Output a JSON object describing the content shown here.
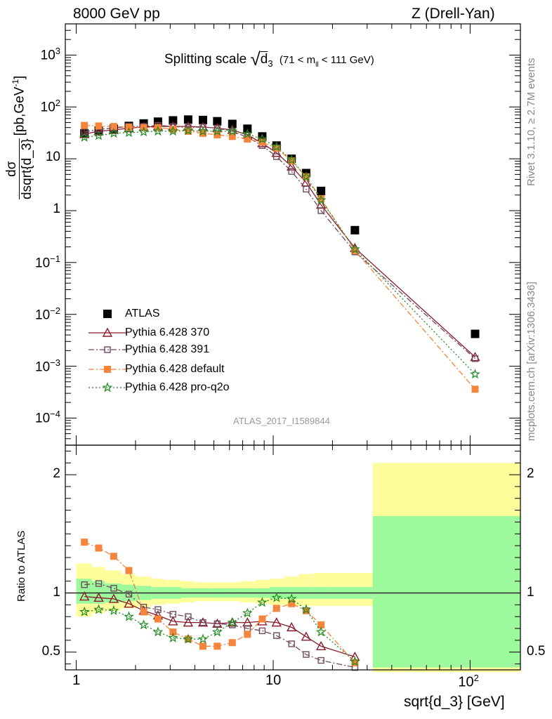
{
  "header": {
    "left": "8000 GeV pp",
    "right": "Z (Drell-Yan)"
  },
  "side_labels": {
    "rivet": "Rivet 3.1.10, ≥ 2.7M events",
    "mcplots": "mcplots.cern.ch [arXiv:1306.3436]"
  },
  "plot_title": {
    "prefix": "Splitting scale",
    "var": "d",
    "sub": "3",
    "range_left": "(71 < m",
    "range_sub": "ll",
    "range_right": " < 111 GeV)"
  },
  "watermark": "ATLAS_2017_I1589844",
  "axes": {
    "ylabel_num": "dσ",
    "ylabel_den": "dsqrt{d_3}",
    "ylabel_unit": "[pb,GeV",
    "ylabel_unit_sup": "-1",
    "ylabel_unit_close": "]",
    "ratio_ylabel": "Ratio to ATLAS",
    "xlabel": "sqrt{d_3} [GeV]",
    "x_ticks": [
      {
        "v": 1,
        "text": "1"
      },
      {
        "v": 10,
        "text": "10"
      },
      {
        "v": 100,
        "base": "10",
        "exp": "2"
      }
    ],
    "main_y_ticks": [
      {
        "v": 0.0001,
        "base": "10",
        "exp": "−4"
      },
      {
        "v": 0.001,
        "base": "10",
        "exp": "−3"
      },
      {
        "v": 0.01,
        "base": "10",
        "exp": "−2"
      },
      {
        "v": 0.1,
        "base": "10",
        "exp": "−1"
      },
      {
        "v": 1,
        "base": "1",
        "exp": ""
      },
      {
        "v": 10,
        "base": "10",
        "exp": ""
      },
      {
        "v": 100,
        "base": "10",
        "exp": "2"
      },
      {
        "v": 1000,
        "base": "10",
        "exp": "3"
      }
    ],
    "ratio_y_ticks": [
      {
        "v": 0.5,
        "text": "0.5"
      },
      {
        "v": 1,
        "text": "1"
      },
      {
        "v": 2,
        "text": "2"
      }
    ]
  },
  "legend": [
    {
      "label": "ATLAS"
    },
    {
      "label": "Pythia 6.428 370"
    },
    {
      "label": "Pythia 6.428 391"
    },
    {
      "label": "Pythia 6.428 default"
    },
    {
      "label": "Pythia 6.428 pro-q2o"
    }
  ],
  "chart_data": {
    "type": "scatter",
    "x_scale": "log",
    "main_y_scale": "log",
    "xlim": [
      0.88,
      180
    ],
    "main_ylim": [
      3e-05,
      4000
    ],
    "ratio_ylim": [
      0.35,
      2.25
    ],
    "x": [
      1.1,
      1.3,
      1.55,
      1.85,
      2.2,
      2.6,
      3.1,
      3.7,
      4.4,
      5.2,
      6.2,
      7.4,
      8.8,
      10.4,
      12.4,
      14.7,
      17.5,
      26,
      106
    ],
    "series": [
      {
        "name": "ATLAS",
        "color": "#000000",
        "marker": "square-filled",
        "line": "none",
        "values": [
          31,
          35,
          38,
          43,
          48,
          52,
          55,
          57,
          56,
          53,
          47,
          38,
          27,
          18,
          10,
          5.3,
          2.4,
          0.42,
          0.0042
        ]
      },
      {
        "name": "Pythia 6.428 370",
        "color": "#8b1a2b",
        "marker": "triangle-open",
        "line": "solid",
        "values": [
          30,
          34,
          36,
          39,
          41,
          42,
          42,
          42,
          41,
          39,
          36,
          29,
          20,
          13,
          7.1,
          3.5,
          1.3,
          0.19,
          0.0015
        ]
      },
      {
        "name": "Pythia 6.428 391",
        "color": "#6f4a5f",
        "marker": "square-open",
        "line": "dashdot",
        "values": [
          33,
          37,
          39,
          42,
          42,
          44,
          42,
          40,
          41,
          39,
          34,
          26,
          18,
          11,
          5.7,
          2.6,
          1.0,
          0.16,
          0.0014
        ]
      },
      {
        "name": "Pythia 6.428 default",
        "color": "#f5843c",
        "marker": "square-filled",
        "line": "dashdot",
        "values": [
          44,
          43,
          42,
          41,
          40,
          40,
          37,
          34,
          31,
          29,
          27,
          24,
          21,
          16,
          9.1,
          4.5,
          1.7,
          0.17,
          0.00036
        ]
      },
      {
        "name": "Pythia 6.428 pro-q2o",
        "color": "#1e8a1e",
        "marker": "star",
        "line": "dotted",
        "values": [
          26,
          28,
          31,
          32,
          33,
          34,
          34,
          35,
          34,
          34,
          34,
          30,
          24,
          17,
          9.5,
          4.5,
          1.6,
          0.18,
          0.0007
        ]
      }
    ],
    "ratio_series": [
      {
        "name": "Pythia 6.428 370",
        "values": [
          0.97,
          0.96,
          0.95,
          0.91,
          0.85,
          0.81,
          0.76,
          0.75,
          0.75,
          0.74,
          0.75,
          0.75,
          0.76,
          0.75,
          0.71,
          0.63,
          0.55,
          0.46
        ]
      },
      {
        "name": "Pythia 6.428 391",
        "values": [
          1.07,
          1.08,
          1.04,
          0.99,
          0.88,
          0.86,
          0.82,
          0.8,
          0.75,
          0.74,
          0.73,
          0.7,
          0.68,
          0.64,
          0.57,
          0.48,
          0.43,
          0.37
        ]
      },
      {
        "name": "Pythia 6.428 default",
        "values": [
          1.43,
          1.38,
          1.31,
          1.19,
          0.84,
          0.78,
          0.67,
          0.61,
          0.55,
          0.55,
          0.58,
          0.65,
          0.78,
          0.87,
          0.91,
          0.85,
          0.73,
          0.41
        ]
      },
      {
        "name": "Pythia 6.428 pro-q2o",
        "values": [
          0.84,
          0.86,
          0.85,
          0.8,
          0.73,
          0.67,
          0.62,
          0.61,
          0.61,
          0.67,
          0.75,
          0.83,
          0.92,
          0.96,
          0.95,
          0.86,
          0.67,
          0.42
        ]
      }
    ],
    "uncertainty_bands": {
      "x_edges": [
        1.0,
        1.2,
        1.4,
        1.7,
        2.0,
        2.4,
        2.8,
        3.4,
        4.0,
        4.8,
        5.7,
        6.8,
        8.1,
        9.6,
        11.4,
        13.5,
        16.0,
        19.0,
        32,
        180
      ],
      "inner_lo": [
        0.91,
        0.91,
        0.92,
        0.93,
        0.94,
        0.95,
        0.95,
        0.96,
        0.96,
        0.96,
        0.96,
        0.96,
        0.96,
        0.95,
        0.95,
        0.95,
        0.95,
        0.95,
        0.37
      ],
      "inner_hi": [
        1.12,
        1.1,
        1.08,
        1.07,
        1.06,
        1.05,
        1.05,
        1.04,
        1.04,
        1.04,
        1.04,
        1.04,
        1.04,
        1.05,
        1.05,
        1.05,
        1.05,
        1.05,
        1.65
      ],
      "outer_lo": [
        0.8,
        0.83,
        0.85,
        0.87,
        0.88,
        0.9,
        0.91,
        0.92,
        0.93,
        0.93,
        0.93,
        0.92,
        0.91,
        0.9,
        0.89,
        0.89,
        0.89,
        0.89,
        0.33
      ],
      "outer_hi": [
        1.25,
        1.22,
        1.19,
        1.16,
        1.14,
        1.12,
        1.11,
        1.1,
        1.09,
        1.09,
        1.09,
        1.1,
        1.11,
        1.12,
        1.14,
        1.16,
        1.17,
        1.17,
        2.1
      ],
      "inner_color": "#9cf99c",
      "outer_color": "#fdfd9c"
    }
  }
}
